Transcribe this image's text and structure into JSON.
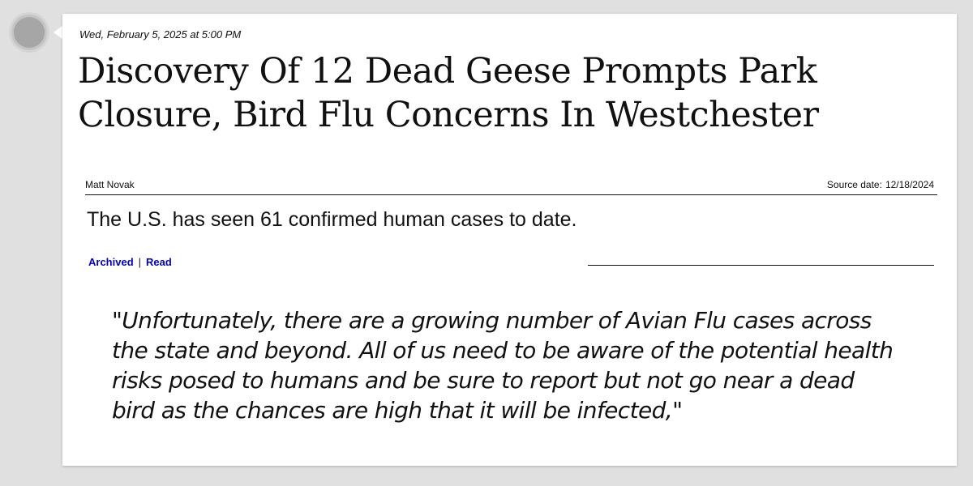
{
  "post": {
    "timestamp": "Wed, February 5, 2025 at 5:00 PM",
    "headline": "Discovery Of 12 Dead Geese Prompts Park Closure, Bird Flu Concerns In Westchester",
    "author": "Matt Novak",
    "source_date_label": "Source date:",
    "source_date": "12/18/2024",
    "summary": "The U.S. has seen 61 confirmed human cases to date.",
    "links": {
      "archived": "Archived",
      "separator": "|",
      "read": "Read"
    },
    "quote": "\"Unfortunately, there are a growing number of Avian Flu cases across\nthe state and beyond. All of us need to be aware of the potential health\nrisks posed to humans and be sure to report but not go near a dead\nbird as the chances are high that it will be infected,\""
  },
  "colors": {
    "background": "#e0e0e0",
    "card": "#ffffff",
    "link": "#0000cc",
    "text": "#111111"
  }
}
